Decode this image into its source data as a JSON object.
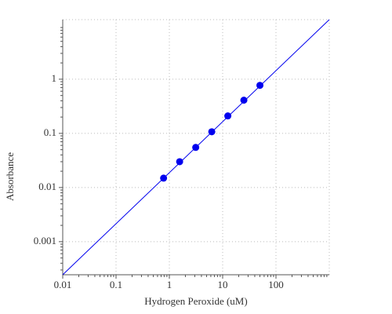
{
  "chart_data": {
    "type": "scatter",
    "x_label": "Hydrogen Peroxide (uM)",
    "y_label": "Absorbance",
    "xscale": "log",
    "yscale": "log",
    "grid": true,
    "xlim": [
      0.01,
      1000
    ],
    "ylim": [
      0.000245,
      12.6
    ],
    "xticks": [
      0.01,
      0.1,
      1,
      10,
      100
    ],
    "yticks": [
      0.001,
      0.01,
      0.1,
      1
    ],
    "series": [
      {
        "color": "#0000ee",
        "mode": "markers",
        "x": [
          0.78,
          1.56,
          3.125,
          6.25,
          12.5,
          25,
          50
        ],
        "y": [
          0.0149,
          0.03,
          0.055,
          0.107,
          0.21,
          0.41,
          0.77
        ]
      },
      {
        "color": "#0000ee",
        "mode": "line",
        "x": [
          0.01,
          1000
        ],
        "y": [
          0.000245,
          12.6
        ]
      }
    ]
  }
}
